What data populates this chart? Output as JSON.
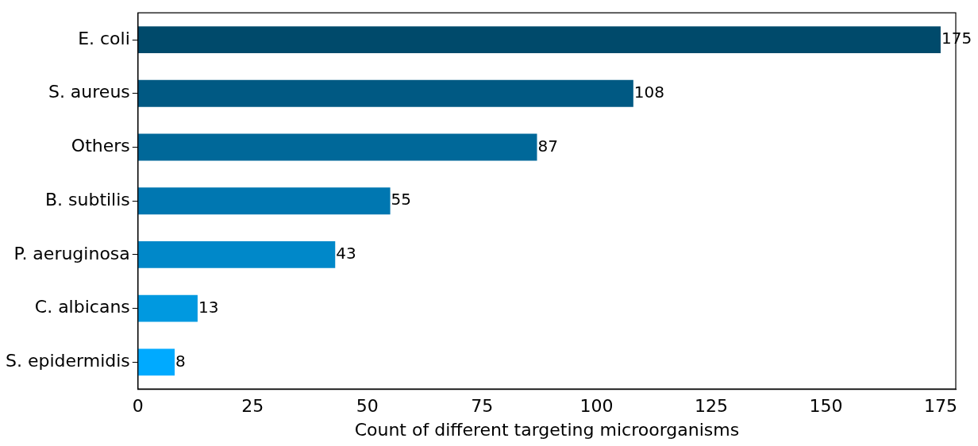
{
  "chart_data": {
    "type": "bar",
    "orientation": "horizontal",
    "xlabel": "Count of different targeting microorganisms",
    "categories": [
      "E. coli",
      "S. aureus",
      "Others",
      "B. subtilis",
      "P. aeruginosa",
      "C. albicans",
      "S. epidermidis"
    ],
    "values": [
      175,
      108,
      87,
      55,
      43,
      13,
      8
    ],
    "colors": [
      "#004a6b",
      "#005983",
      "#006899",
      "#0077b1",
      "#0088c9",
      "#0099e0",
      "#00aaff"
    ],
    "xlim": [
      0,
      178.3
    ],
    "xticks": [
      0,
      25,
      50,
      75,
      100,
      125,
      150,
      175
    ],
    "data_labels": true,
    "grid": false,
    "legend": false
  }
}
